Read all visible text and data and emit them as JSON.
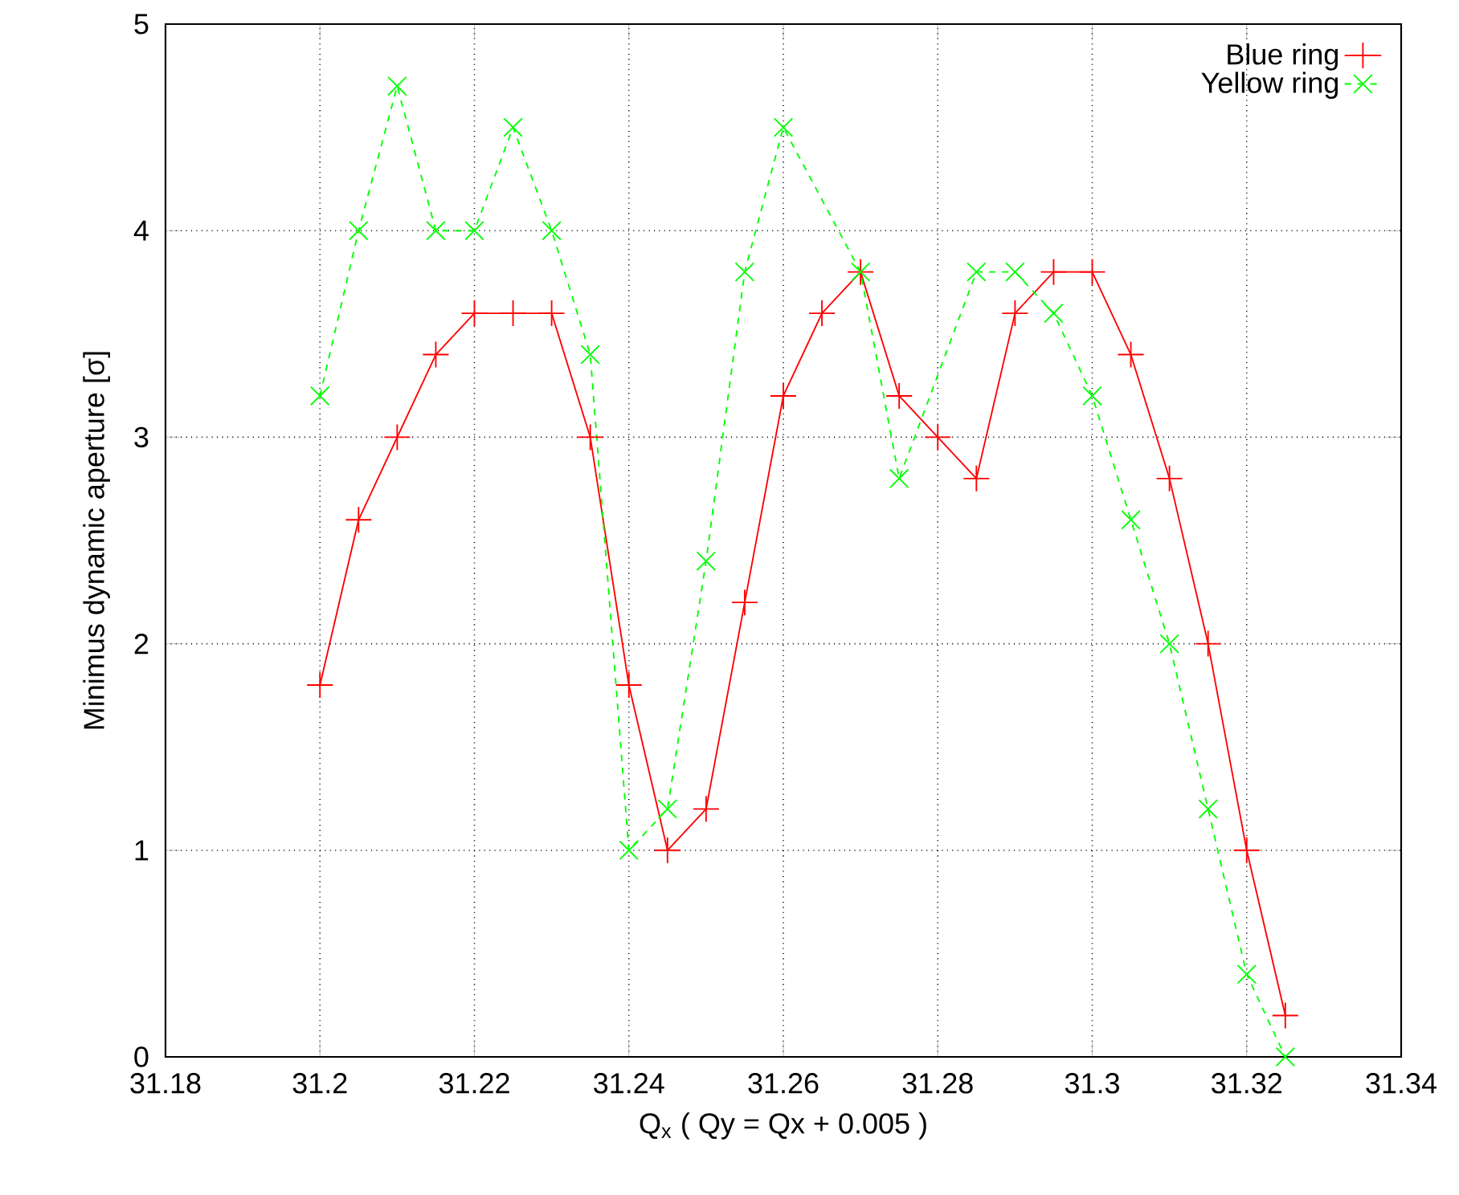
{
  "chart_data": {
    "type": "line",
    "xlabel": "Q$_{x}$ ( Qy = Qx  +  0.005 )",
    "ylabel": "Minimus dynamic aperture [σ]",
    "xlim": [
      31.18,
      31.34
    ],
    "ylim": [
      0,
      5
    ],
    "xticks": [
      31.18,
      31.2,
      31.22,
      31.24,
      31.26,
      31.28,
      31.3,
      31.32,
      31.34
    ],
    "yticks": [
      0,
      1,
      2,
      3,
      4,
      5
    ],
    "grid": true,
    "legend": "top right",
    "series": [
      {
        "name": "Blue ring",
        "color": "#ff0000",
        "marker": "plus",
        "line_style": "solid",
        "x": [
          31.2,
          31.205,
          31.21,
          31.215,
          31.22,
          31.225,
          31.23,
          31.235,
          31.24,
          31.245,
          31.25,
          31.255,
          31.26,
          31.265,
          31.27,
          31.275,
          31.28,
          31.285,
          31.29,
          31.295,
          31.3,
          31.305,
          31.31,
          31.315,
          31.32,
          31.325
        ],
        "values": [
          1.8,
          2.6,
          3.0,
          3.4,
          3.6,
          3.6,
          3.6,
          3.0,
          1.8,
          1.0,
          1.2,
          2.2,
          3.2,
          3.6,
          3.8,
          3.2,
          3.0,
          2.8,
          3.6,
          3.8,
          3.8,
          3.4,
          2.8,
          2.0,
          1.0,
          0.2
        ]
      },
      {
        "name": "Yellow ring",
        "color": "#00ff00",
        "marker": "cross",
        "line_style": "dashed",
        "x": [
          31.2,
          31.205,
          31.21,
          31.215,
          31.22,
          31.225,
          31.23,
          31.235,
          31.24,
          31.245,
          31.25,
          31.255,
          31.26,
          31.27,
          31.275,
          31.285,
          31.29,
          31.295,
          31.3,
          31.305,
          31.31,
          31.315,
          31.32,
          31.325
        ],
        "values": [
          3.2,
          4.0,
          4.7,
          4.0,
          4.0,
          4.5,
          4.0,
          3.4,
          1.0,
          1.2,
          2.4,
          3.8,
          4.5,
          3.8,
          2.8,
          3.8,
          3.8,
          3.6,
          3.2,
          2.6,
          2.0,
          1.2,
          0.4,
          0.0
        ]
      }
    ]
  }
}
